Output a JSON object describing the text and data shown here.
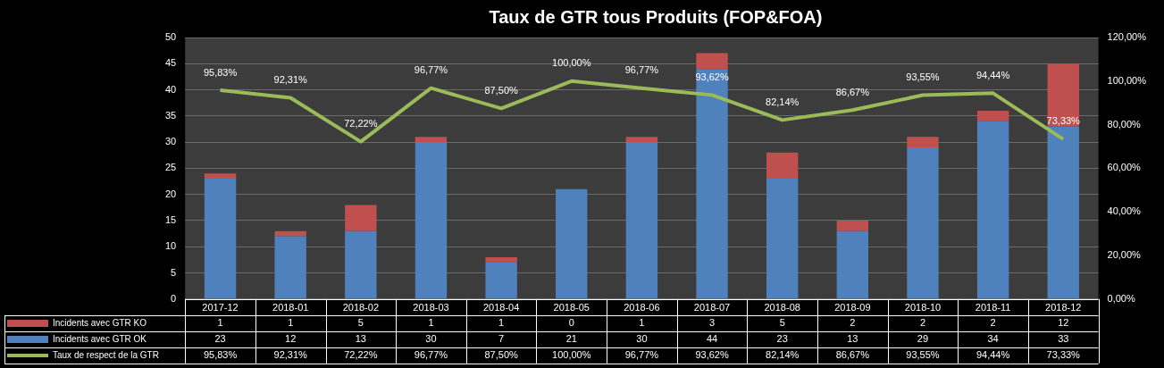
{
  "chart_data": {
    "type": "bar",
    "title": "Taux de GTR tous Produits (FOP&FOA)",
    "stacked": true,
    "grid": "y",
    "legend": "bottom",
    "categories": [
      "2017-12",
      "2018-01",
      "2018-02",
      "2018-03",
      "2018-04",
      "2018-05",
      "2018-06",
      "2018-07",
      "2018-08",
      "2018-09",
      "2018-10",
      "2018-11",
      "2018-12"
    ],
    "ylim": [
      0,
      50
    ],
    "yticks": [
      0,
      5,
      10,
      15,
      20,
      25,
      30,
      35,
      40,
      45,
      50
    ],
    "y2lim": [
      0,
      120
    ],
    "y2ticks": [
      {
        "value": 0,
        "label": "0,00%"
      },
      {
        "value": 20,
        "label": "20,00%"
      },
      {
        "value": 40,
        "label": "40,00%"
      },
      {
        "value": 60,
        "label": "60,00%"
      },
      {
        "value": 80,
        "label": "80,00%"
      },
      {
        "value": 100,
        "label": "100,00%"
      },
      {
        "value": 120,
        "label": "120,00%"
      }
    ],
    "series": [
      {
        "name": "Incidents avec GTR OK",
        "color": "#4f81bd",
        "values": [
          23,
          12,
          13,
          30,
          7,
          21,
          30,
          44,
          23,
          13,
          29,
          34,
          33
        ],
        "value_labels": [
          "23",
          "12",
          "13",
          "30",
          "7",
          "21",
          "30",
          "44",
          "23",
          "13",
          "29",
          "34",
          "33"
        ]
      },
      {
        "name": "Incidents avec GTR KO",
        "color": "#c0504d",
        "values": [
          1,
          1,
          5,
          1,
          1,
          0,
          1,
          3,
          5,
          2,
          2,
          2,
          12
        ],
        "value_labels": [
          "1",
          "1",
          "5",
          "1",
          "1",
          "0",
          "1",
          "3",
          "5",
          "2",
          "2",
          "2",
          "12"
        ]
      },
      {
        "name": "Taux de respect de la GTR",
        "type": "line",
        "axis": "y2",
        "marker": "none",
        "color": "#9bbb59",
        "values": [
          95.83,
          92.31,
          72.22,
          96.77,
          87.5,
          100,
          96.77,
          93.62,
          82.14,
          86.67,
          93.55,
          94.44,
          73.33
        ],
        "value_labels": [
          "95,83%",
          "92,31%",
          "72,22%",
          "96,77%",
          "87,50%",
          "100,00%",
          "96,77%",
          "93,62%",
          "82,14%",
          "86,67%",
          "93,55%",
          "94,44%",
          "73,33%"
        ]
      }
    ]
  }
}
